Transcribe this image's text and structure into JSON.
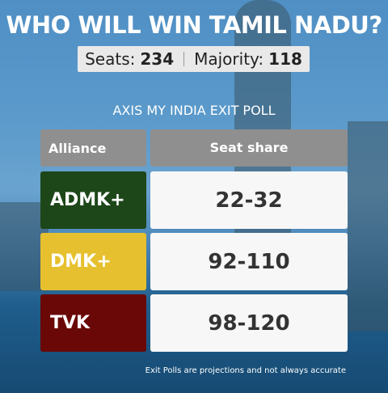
{
  "header": {
    "title": "WHO WILL WIN TAMIL NADU?",
    "seats_label": "Seats:",
    "seats": 234,
    "majority_label": "Majority:",
    "majority": 118
  },
  "poll_title": "AXIS MY INDIA EXIT POLL",
  "table": {
    "columns": [
      "Alliance",
      "Seat share"
    ],
    "rows": [
      {
        "alliance": "ADMK+",
        "seat_share": "22-32",
        "color": "#1d4719",
        "text_color": "#ffffff"
      },
      {
        "alliance": "DMK+",
        "seat_share": "92-110",
        "color": "#e6c02e",
        "text_color": "#ffffff"
      },
      {
        "alliance": "TVK",
        "seat_share": "98-120",
        "color": "#6a0808",
        "text_color": "#ffffff"
      }
    ]
  },
  "footnote": "Exit Polls are projections and not always accurate"
}
